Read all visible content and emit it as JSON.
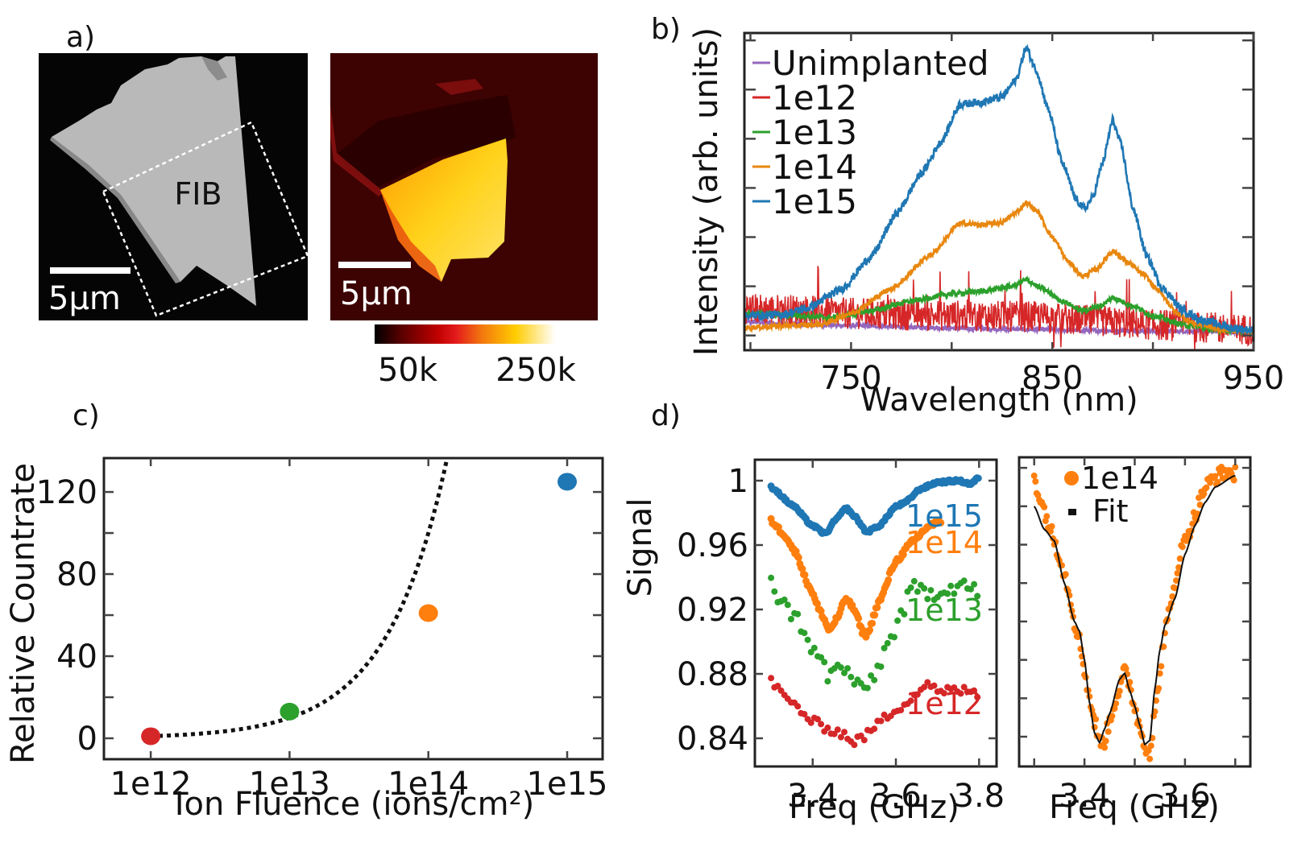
{
  "figure": {
    "panel_labels": {
      "a": "a)",
      "b": "b)",
      "c": "c)",
      "d": "d)"
    }
  },
  "panel_a": {
    "sem_label": "FIB",
    "scalebar_left": "5μm",
    "scalebar_right": "5μm",
    "colorbar": {
      "min_label": "50k",
      "max_label": "250k",
      "colormap": [
        "#000000",
        "#5a0000",
        "#c00000",
        "#e31a1c",
        "#f47b0e",
        "#ffcc00",
        "#ffffff"
      ]
    }
  },
  "chart_data": [
    {
      "id": "b",
      "type": "line",
      "title": "",
      "xlabel": "Wavelength (nm)",
      "ylabel": "Intensity (arb. units)",
      "xlim": [
        697,
        950
      ],
      "ylim": [
        -0.3,
        6.15
      ],
      "xticks": [
        750,
        850,
        950
      ],
      "xminor": [
        700,
        800,
        900
      ],
      "yticks": [
        0,
        1,
        2,
        3,
        4,
        5,
        6
      ],
      "ytick_labels_visible": false,
      "legend_position": "top-left",
      "series": [
        {
          "name": "Unimplanted",
          "color": "#9467bd",
          "noise": 0.04,
          "points": [
            [
              697,
              0.28
            ],
            [
              720,
              0.24
            ],
            [
              750,
              0.2
            ],
            [
              780,
              0.17
            ],
            [
              810,
              0.14
            ],
            [
              840,
              0.12
            ],
            [
              870,
              0.1
            ],
            [
              900,
              0.09
            ],
            [
              930,
              0.08
            ],
            [
              950,
              0.08
            ]
          ]
        },
        {
          "name": "1e12",
          "color": "#d62728",
          "noise": 0.32,
          "points": [
            [
              697,
              0.55
            ],
            [
              720,
              0.52
            ],
            [
              750,
              0.45
            ],
            [
              780,
              0.42
            ],
            [
              810,
              0.4
            ],
            [
              840,
              0.38
            ],
            [
              870,
              0.3
            ],
            [
              900,
              0.22
            ],
            [
              930,
              0.15
            ],
            [
              950,
              0.12
            ]
          ]
        },
        {
          "name": "1e13",
          "color": "#2ca02c",
          "noise": 0.05,
          "points": [
            [
              697,
              0.44
            ],
            [
              720,
              0.42
            ],
            [
              740,
              0.36
            ],
            [
              760,
              0.5
            ],
            [
              780,
              0.7
            ],
            [
              800,
              0.85
            ],
            [
              815,
              0.9
            ],
            [
              830,
              1.0
            ],
            [
              837,
              1.13
            ],
            [
              845,
              0.95
            ],
            [
              855,
              0.7
            ],
            [
              865,
              0.5
            ],
            [
              875,
              0.62
            ],
            [
              880,
              0.77
            ],
            [
              890,
              0.6
            ],
            [
              900,
              0.4
            ],
            [
              915,
              0.22
            ],
            [
              930,
              0.12
            ],
            [
              950,
              0.08
            ]
          ]
        },
        {
          "name": "1e14",
          "color": "#e8870e",
          "noise": 0.05,
          "points": [
            [
              697,
              0.16
            ],
            [
              720,
              0.2
            ],
            [
              735,
              0.22
            ],
            [
              750,
              0.45
            ],
            [
              770,
              0.95
            ],
            [
              790,
              1.65
            ],
            [
              804,
              2.28
            ],
            [
              815,
              2.25
            ],
            [
              825,
              2.3
            ],
            [
              832,
              2.5
            ],
            [
              837,
              2.7
            ],
            [
              842,
              2.55
            ],
            [
              850,
              2.0
            ],
            [
              858,
              1.5
            ],
            [
              865,
              1.2
            ],
            [
              872,
              1.35
            ],
            [
              880,
              1.72
            ],
            [
              887,
              1.5
            ],
            [
              895,
              1.25
            ],
            [
              903,
              0.9
            ],
            [
              912,
              0.45
            ],
            [
              920,
              0.25
            ],
            [
              935,
              0.12
            ],
            [
              950,
              0.08
            ]
          ]
        },
        {
          "name": "1e15",
          "color": "#1f77b4",
          "noise": 0.08,
          "points": [
            [
              697,
              0.4
            ],
            [
              715,
              0.42
            ],
            [
              728,
              0.55
            ],
            [
              745,
              0.93
            ],
            [
              760,
              1.6
            ],
            [
              773,
              2.5
            ],
            [
              785,
              3.3
            ],
            [
              795,
              3.95
            ],
            [
              804,
              4.7
            ],
            [
              815,
              4.75
            ],
            [
              825,
              4.85
            ],
            [
              832,
              5.2
            ],
            [
              837,
              5.85
            ],
            [
              842,
              5.4
            ],
            [
              848,
              4.6
            ],
            [
              855,
              3.5
            ],
            [
              862,
              2.75
            ],
            [
              866,
              2.57
            ],
            [
              870,
              2.8
            ],
            [
              875,
              3.5
            ],
            [
              880,
              4.38
            ],
            [
              884,
              3.9
            ],
            [
              890,
              2.6
            ],
            [
              897,
              1.6
            ],
            [
              905,
              0.95
            ],
            [
              915,
              0.5
            ],
            [
              925,
              0.3
            ],
            [
              940,
              0.15
            ],
            [
              950,
              0.1
            ]
          ]
        }
      ]
    },
    {
      "id": "c",
      "type": "scatter",
      "title": "",
      "xlabel": "Ion Fluence (ions/cm²)",
      "ylabel": "Relative Countrate",
      "xscale": "log",
      "xlim": [
        460000000000.0,
        1800000000000000.0
      ],
      "ylim": [
        -10.2,
        136.5
      ],
      "xticks": [
        1000000000000.0,
        10000000000000.0,
        100000000000000.0,
        1000000000000000.0
      ],
      "xtick_labels": [
        "1e12",
        "1e13",
        "1e14",
        "1e15"
      ],
      "yticks": [
        0,
        40,
        80,
        120
      ],
      "yminor": [
        20,
        60,
        100
      ],
      "points": [
        {
          "x": 1000000000000.0,
          "y": 1,
          "color": "#d62728"
        },
        {
          "x": 10000000000000.0,
          "y": 13,
          "color": "#2ca02c"
        },
        {
          "x": 100000000000000.0,
          "y": 61,
          "color": "#ff7f0e"
        },
        {
          "x": 1000000000000000.0,
          "y": 125,
          "color": "#1f77b4"
        }
      ],
      "fit": {
        "style": "dotted",
        "color": "#111111",
        "model": "y = x / 1e12",
        "x_range": [
          1000000000000.0,
          136000000000000.0
        ]
      }
    },
    {
      "id": "d-left",
      "type": "scatter",
      "title": "",
      "xlabel": "Freq (GHz)",
      "ylabel": "Signal",
      "xlim": [
        3.261,
        3.842
      ],
      "ylim": [
        0.8225,
        1.013
      ],
      "xticks": [
        3.4,
        3.6,
        3.8
      ],
      "yticks": [
        0.84,
        0.88,
        0.92,
        0.96,
        1.0
      ],
      "ytick_labels": [
        "0.84",
        "0.88",
        "0.92",
        "0.96",
        "1"
      ],
      "series": [
        {
          "name": "1e15",
          "color": "#1f77b4",
          "jitter": 0.0008,
          "points": [
            [
              3.3,
              0.996
            ],
            [
              3.35,
              0.985
            ],
            [
              3.4,
              0.972
            ],
            [
              3.43,
              0.967
            ],
            [
              3.46,
              0.977
            ],
            [
              3.48,
              0.983
            ],
            [
              3.5,
              0.978
            ],
            [
              3.53,
              0.968
            ],
            [
              3.56,
              0.972
            ],
            [
              3.6,
              0.984
            ],
            [
              3.62,
              0.986
            ],
            [
              3.66,
              0.995
            ],
            [
              3.7,
              0.999
            ],
            [
              3.75,
              1.0
            ],
            [
              3.78,
              0.998
            ],
            [
              3.8,
              1.002
            ]
          ]
        },
        {
          "name": "1e14",
          "color": "#ff7f0e",
          "jitter": 0.0015,
          "points": [
            [
              3.3,
              0.975
            ],
            [
              3.33,
              0.967
            ],
            [
              3.36,
              0.955
            ],
            [
              3.39,
              0.935
            ],
            [
              3.42,
              0.918
            ],
            [
              3.44,
              0.907
            ],
            [
              3.46,
              0.915
            ],
            [
              3.48,
              0.927
            ],
            [
              3.5,
              0.92
            ],
            [
              3.52,
              0.906
            ],
            [
              3.53,
              0.904
            ],
            [
              3.56,
              0.925
            ],
            [
              3.6,
              0.95
            ],
            [
              3.64,
              0.962
            ],
            [
              3.68,
              0.972
            ],
            [
              3.71,
              0.975
            ]
          ]
        },
        {
          "name": "1e13",
          "color": "#2ca02c",
          "jitter": 0.005,
          "points": [
            [
              3.3,
              0.94
            ],
            [
              3.32,
              0.925
            ],
            [
              3.35,
              0.918
            ],
            [
              3.38,
              0.908
            ],
            [
              3.4,
              0.894
            ],
            [
              3.42,
              0.888
            ],
            [
              3.44,
              0.878
            ],
            [
              3.46,
              0.884
            ],
            [
              3.48,
              0.882
            ],
            [
              3.5,
              0.876
            ],
            [
              3.52,
              0.868
            ],
            [
              3.55,
              0.88
            ],
            [
              3.58,
              0.898
            ],
            [
              3.61,
              0.915
            ],
            [
              3.64,
              0.933
            ],
            [
              3.68,
              0.93
            ],
            [
              3.72,
              0.933
            ],
            [
              3.76,
              0.936
            ],
            [
              3.8,
              0.93
            ]
          ]
        },
        {
          "name": "1e12",
          "color": "#d62728",
          "jitter": 0.003,
          "points": [
            [
              3.3,
              0.876
            ],
            [
              3.33,
              0.866
            ],
            [
              3.36,
              0.86
            ],
            [
              3.4,
              0.85
            ],
            [
              3.44,
              0.846
            ],
            [
              3.47,
              0.843
            ],
            [
              3.5,
              0.838
            ],
            [
              3.53,
              0.842
            ],
            [
              3.56,
              0.85
            ],
            [
              3.6,
              0.858
            ],
            [
              3.64,
              0.866
            ],
            [
              3.68,
              0.875
            ],
            [
              3.7,
              0.868
            ],
            [
              3.74,
              0.87
            ],
            [
              3.78,
              0.869
            ],
            [
              3.8,
              0.867
            ]
          ]
        }
      ]
    },
    {
      "id": "d-right",
      "type": "scatter",
      "title": "",
      "xlabel": "Freq (GHz)",
      "ylabel": "",
      "xlim": [
        3.27,
        3.73
      ],
      "ylim": [
        0.8445,
        1.0055
      ],
      "xticks": [
        3.4,
        3.6
      ],
      "xminor": [
        3.3,
        3.5,
        3.7
      ],
      "yticks": [
        0.86,
        0.88,
        0.9,
        0.92,
        0.94,
        0.96,
        0.98,
        1.0
      ],
      "ytick_labels_visible": false,
      "legend_position": "top-center",
      "legend": [
        {
          "label": "1e14",
          "marker": "dot",
          "color": "#ff7f0e"
        },
        {
          "label": "Fit",
          "marker": "dash",
          "color": "#111111"
        }
      ],
      "data_points": {
        "name": "1e14",
        "color": "#ff7f0e",
        "jitter": 0.004,
        "points": [
          [
            3.3,
            0.996
          ],
          [
            3.31,
            0.985
          ],
          [
            3.32,
            0.978
          ],
          [
            3.33,
            0.97
          ],
          [
            3.34,
            0.962
          ],
          [
            3.35,
            0.955
          ],
          [
            3.36,
            0.945
          ],
          [
            3.37,
            0.935
          ],
          [
            3.38,
            0.92
          ],
          [
            3.39,
            0.91
          ],
          [
            3.4,
            0.895
          ],
          [
            3.41,
            0.88
          ],
          [
            3.42,
            0.868
          ],
          [
            3.43,
            0.857
          ],
          [
            3.44,
            0.858
          ],
          [
            3.45,
            0.868
          ],
          [
            3.46,
            0.878
          ],
          [
            3.47,
            0.885
          ],
          [
            3.48,
            0.894
          ],
          [
            3.49,
            0.887
          ],
          [
            3.5,
            0.875
          ],
          [
            3.51,
            0.865
          ],
          [
            3.52,
            0.856
          ],
          [
            3.53,
            0.852
          ],
          [
            3.54,
            0.872
          ],
          [
            3.55,
            0.893
          ],
          [
            3.56,
            0.915
          ],
          [
            3.57,
            0.925
          ],
          [
            3.58,
            0.94
          ],
          [
            3.59,
            0.955
          ],
          [
            3.6,
            0.962
          ],
          [
            3.61,
            0.968
          ],
          [
            3.62,
            0.975
          ],
          [
            3.63,
            0.983
          ],
          [
            3.64,
            0.99
          ],
          [
            3.66,
            0.995
          ],
          [
            3.68,
            0.998
          ],
          [
            3.7,
            0.997
          ]
        ]
      },
      "fit": {
        "name": "Fit",
        "color": "#111111",
        "points": [
          [
            3.3,
            0.98
          ],
          [
            3.32,
            0.968
          ],
          [
            3.34,
            0.962
          ],
          [
            3.36,
            0.94
          ],
          [
            3.38,
            0.92
          ],
          [
            3.39,
            0.915
          ],
          [
            3.4,
            0.9
          ],
          [
            3.41,
            0.878
          ],
          [
            3.42,
            0.862
          ],
          [
            3.43,
            0.857
          ],
          [
            3.44,
            0.864
          ],
          [
            3.45,
            0.872
          ],
          [
            3.47,
            0.89
          ],
          [
            3.48,
            0.893
          ],
          [
            3.49,
            0.884
          ],
          [
            3.5,
            0.876
          ],
          [
            3.51,
            0.866
          ],
          [
            3.52,
            0.856
          ],
          [
            3.53,
            0.858
          ],
          [
            3.54,
            0.885
          ],
          [
            3.55,
            0.905
          ],
          [
            3.56,
            0.918
          ],
          [
            3.58,
            0.932
          ],
          [
            3.6,
            0.955
          ],
          [
            3.62,
            0.97
          ],
          [
            3.64,
            0.982
          ],
          [
            3.66,
            0.99
          ],
          [
            3.7,
            0.996
          ]
        ]
      }
    }
  ]
}
